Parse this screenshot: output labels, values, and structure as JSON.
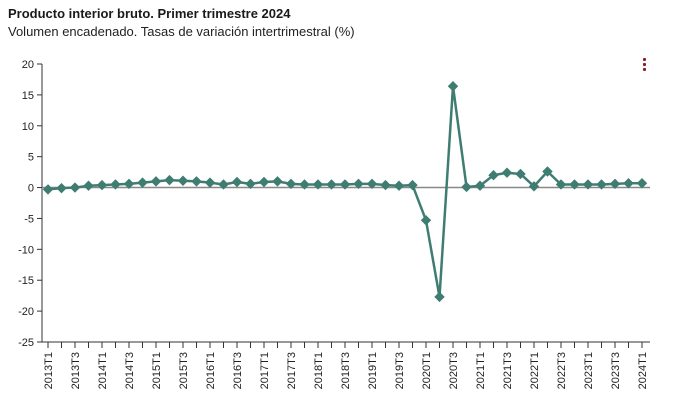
{
  "header": {
    "title": "Producto interior bruto. Primer trimestre 2024",
    "subtitle": "Volumen encadenado. Tasas de variación intertrimestral (%)"
  },
  "icons": {
    "menu": "vertical-ellipsis-icon"
  },
  "colors": {
    "series": "#3f7d73",
    "accent": "#8b1c2c",
    "zero_line": "#888888"
  },
  "chart_data": {
    "type": "line",
    "title": "Producto interior bruto. Primer trimestre 2024",
    "subtitle": "Volumen encadenado. Tasas de variación intertrimestral (%)",
    "ylim": [
      -25,
      20
    ],
    "y_ticks": [
      20,
      15,
      10,
      5,
      0,
      -5,
      -10,
      -15,
      -20,
      -25
    ],
    "x": [
      "2013T1",
      "2013T2",
      "2013T3",
      "2013T4",
      "2014T1",
      "2014T2",
      "2014T3",
      "2014T4",
      "2015T1",
      "2015T2",
      "2015T3",
      "2015T4",
      "2016T1",
      "2016T2",
      "2016T3",
      "2016T4",
      "2017T1",
      "2017T2",
      "2017T3",
      "2017T4",
      "2018T1",
      "2018T2",
      "2018T3",
      "2018T4",
      "2019T1",
      "2019T2",
      "2019T3",
      "2019T4",
      "2020T1",
      "2020T2",
      "2020T3",
      "2020T4",
      "2021T1",
      "2021T2",
      "2021T3",
      "2021T4",
      "2022T1",
      "2022T2",
      "2022T3",
      "2022T4",
      "2023T1",
      "2023T2",
      "2023T3",
      "2023T4",
      "2024T1"
    ],
    "x_tick_labels": [
      "2013T1",
      "2013T3",
      "2014T1",
      "2014T3",
      "2015T1",
      "2015T3",
      "2016T1",
      "2016T3",
      "2017T1",
      "2017T3",
      "2018T1",
      "2018T3",
      "2019T1",
      "2019T3",
      "2020T1",
      "2020T3",
      "2021T1",
      "2021T3",
      "2022T1",
      "2022T3",
      "2023T1",
      "2023T3",
      "2024T1"
    ],
    "series": [
      {
        "values": [
          -0.3,
          -0.1,
          0.0,
          0.3,
          0.4,
          0.5,
          0.6,
          0.8,
          1.0,
          1.2,
          1.1,
          1.0,
          0.8,
          0.5,
          0.9,
          0.6,
          0.9,
          1.0,
          0.6,
          0.5,
          0.5,
          0.5,
          0.5,
          0.6,
          0.6,
          0.4,
          0.3,
          0.4,
          -5.3,
          -17.7,
          16.4,
          0.1,
          0.3,
          2.0,
          2.4,
          2.2,
          0.2,
          2.6,
          0.5,
          0.5,
          0.5,
          0.5,
          0.6,
          0.7,
          0.7
        ]
      }
    ],
    "grid": false,
    "legend": "none"
  }
}
